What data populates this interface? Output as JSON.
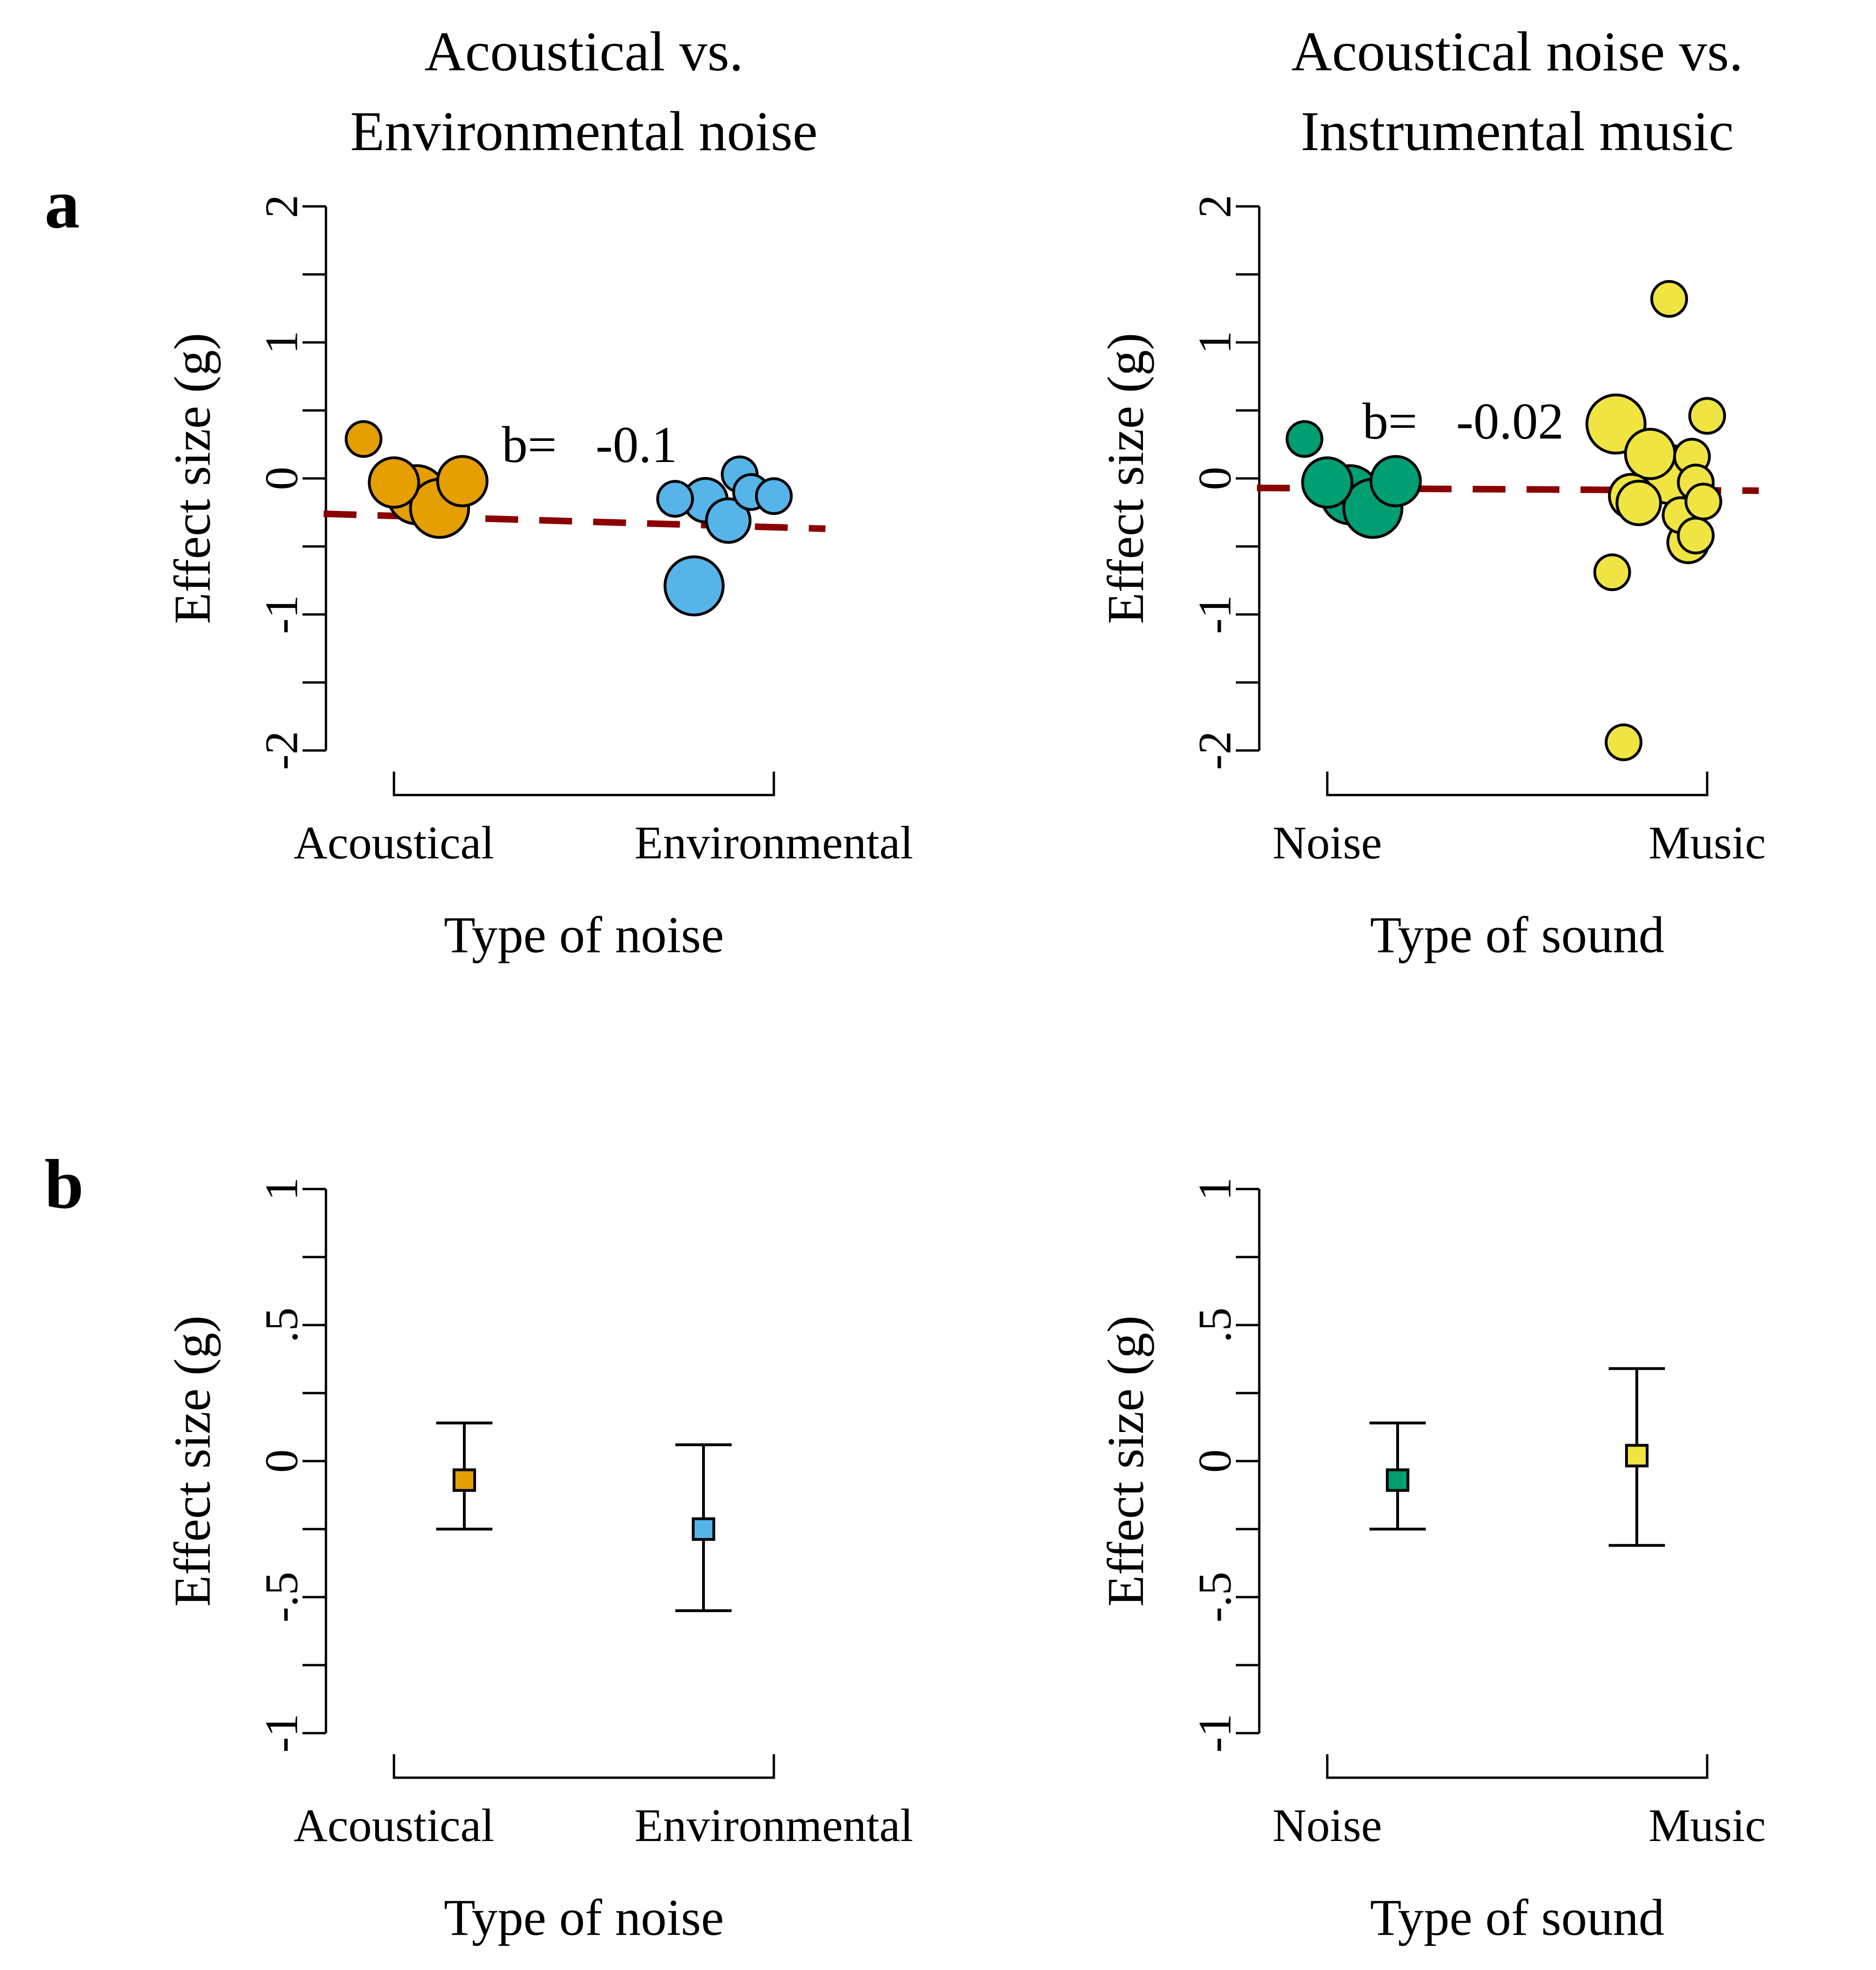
{
  "panel_letters": [
    "a",
    "b"
  ],
  "chart_data": [
    {
      "type": "scatter",
      "panel": "a",
      "title": [
        "Acoustical vs.",
        "Environmental noise"
      ],
      "xlabel": "Type of noise",
      "ylabel": "Effect size (g)",
      "categories": [
        "Acoustical",
        "Environmental"
      ],
      "ylim": [
        -2,
        2
      ],
      "yticks": [
        2,
        1,
        0,
        -1,
        -2
      ],
      "ytick_labels": [
        "2",
        "1",
        "0",
        "-1",
        "-2"
      ],
      "grid": false,
      "annotation": {
        "prefix": "b=",
        "value": "-0.1"
      },
      "regression_line": {
        "y_at_start": -0.26,
        "y_at_end": -0.37
      },
      "series": [
        {
          "category": "Acoustical",
          "color": "#e69f00",
          "points": [
            {
              "x": -0.08,
              "y": 0.29,
              "weight": 0.6
            },
            {
              "x": 0.0,
              "y": -0.03,
              "weight": 0.85
            },
            {
              "x": 0.06,
              "y": -0.12,
              "weight": 1.0
            },
            {
              "x": 0.12,
              "y": -0.22,
              "weight": 1.0
            },
            {
              "x": 0.18,
              "y": -0.02,
              "weight": 0.85
            }
          ]
        },
        {
          "category": "Environmental",
          "color": "#56b4e9",
          "points": [
            {
              "x": -0.26,
              "y": -0.15,
              "weight": 0.6
            },
            {
              "x": -0.18,
              "y": -0.16,
              "weight": 0.75
            },
            {
              "x": -0.12,
              "y": -0.31,
              "weight": 0.75
            },
            {
              "x": -0.09,
              "y": 0.03,
              "weight": 0.6
            },
            {
              "x": -0.06,
              "y": -0.1,
              "weight": 0.6
            },
            {
              "x": 0.0,
              "y": -0.13,
              "weight": 0.6
            },
            {
              "x": -0.21,
              "y": -0.79,
              "weight": 1.0
            }
          ]
        }
      ]
    },
    {
      "type": "scatter",
      "panel": "a",
      "title": [
        "Acoustical noise vs.",
        "Instrumental music"
      ],
      "xlabel": "Type of sound",
      "ylabel": "Effect size (g)",
      "categories": [
        "Noise",
        "Music"
      ],
      "ylim": [
        -2,
        2
      ],
      "yticks": [
        2,
        1,
        0,
        -1,
        -2
      ],
      "ytick_labels": [
        "2",
        "1",
        "0",
        "-1",
        "-2"
      ],
      "grid": false,
      "annotation": {
        "prefix": "b=",
        "value": "-0.02"
      },
      "regression_line": {
        "y_at_start": -0.07,
        "y_at_end": -0.09
      },
      "series": [
        {
          "category": "Noise",
          "color": "#009e73",
          "points": [
            {
              "x": -0.06,
              "y": 0.29,
              "weight": 0.6
            },
            {
              "x": 0.0,
              "y": -0.03,
              "weight": 0.85
            },
            {
              "x": 0.06,
              "y": -0.12,
              "weight": 1.0
            },
            {
              "x": 0.12,
              "y": -0.22,
              "weight": 1.0
            },
            {
              "x": 0.18,
              "y": -0.02,
              "weight": 0.85
            }
          ]
        },
        {
          "category": "Music",
          "color": "#f0e442",
          "points": [
            {
              "x": -0.24,
              "y": 0.4,
              "weight": 1.0
            },
            {
              "x": -0.15,
              "y": 0.18,
              "weight": 0.85
            },
            {
              "x": -0.1,
              "y": 0.03,
              "weight": 1.0
            },
            {
              "x": -0.2,
              "y": -0.13,
              "weight": 0.75
            },
            {
              "x": -0.18,
              "y": -0.18,
              "weight": 0.75
            },
            {
              "x": -0.07,
              "y": -0.27,
              "weight": 0.6
            },
            {
              "x": -0.04,
              "y": 0.16,
              "weight": 0.6
            },
            {
              "x": -0.03,
              "y": -0.42,
              "weight": 0.6
            },
            {
              "x": -0.05,
              "y": -0.47,
              "weight": 0.7
            },
            {
              "x": -0.03,
              "y": -0.03,
              "weight": 0.6
            },
            {
              "x": -0.01,
              "y": -0.17,
              "weight": 0.6
            },
            {
              "x": 0.0,
              "y": 0.46,
              "weight": 0.6
            },
            {
              "x": -0.1,
              "y": 1.32,
              "weight": 0.6
            },
            {
              "x": -0.25,
              "y": -0.69,
              "weight": 0.6
            },
            {
              "x": -0.22,
              "y": -1.94,
              "weight": 0.6
            }
          ]
        }
      ]
    },
    {
      "type": "errorbar",
      "panel": "b",
      "xlabel": "Type of noise",
      "ylabel": "Effect size (g)",
      "categories": [
        "Acoustical",
        "Environmental"
      ],
      "ylim": [
        -1,
        1
      ],
      "yticks": [
        1,
        0.5,
        0,
        -0.5,
        -1
      ],
      "ytick_labels": [
        "1",
        ".5",
        "0",
        "-.5",
        "-1"
      ],
      "grid": false,
      "series": [
        {
          "category": "Acoustical",
          "estimate": -0.07,
          "lower": -0.25,
          "upper": 0.14,
          "color": "#e69f00"
        },
        {
          "category": "Environmental",
          "estimate": -0.25,
          "lower": -0.55,
          "upper": 0.06,
          "color": "#56b4e9"
        }
      ]
    },
    {
      "type": "errorbar",
      "panel": "b",
      "xlabel": "Type of sound",
      "ylabel": "Effect size (g)",
      "categories": [
        "Noise",
        "Music"
      ],
      "ylim": [
        -1,
        1
      ],
      "yticks": [
        1,
        0.5,
        0,
        -0.5,
        -1
      ],
      "ytick_labels": [
        "1",
        ".5",
        "0",
        "-.5",
        "-1"
      ],
      "grid": false,
      "series": [
        {
          "category": "Noise",
          "estimate": -0.07,
          "lower": -0.25,
          "upper": 0.14,
          "color": "#009e73"
        },
        {
          "category": "Music",
          "estimate": 0.02,
          "lower": -0.31,
          "upper": 0.34,
          "color": "#f0e442"
        }
      ]
    }
  ]
}
